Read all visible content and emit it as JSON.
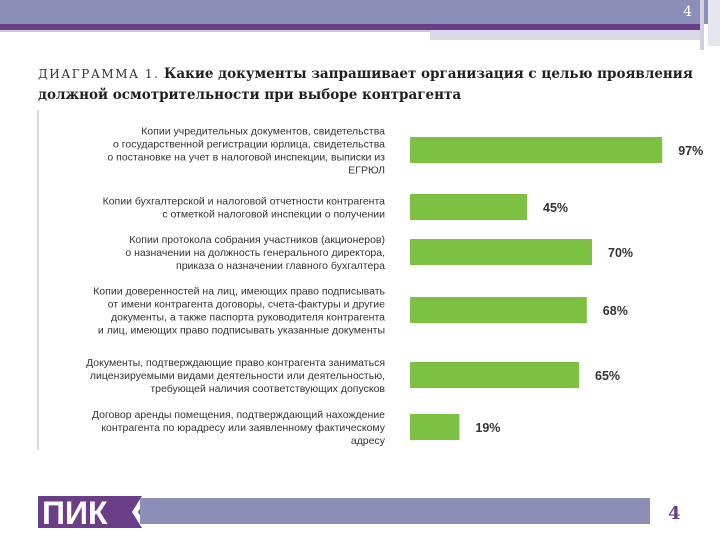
{
  "slide": {
    "page_number_top": "4",
    "page_number_bottom": "4",
    "title_prefix": "ДИАГРАММА 1.",
    "title_line1": "Какие документы запрашивает организация с целью проявления",
    "title_line2": "должной осмотрительности при выборе контрагента",
    "logo_text": "ПИК"
  },
  "colors": {
    "bar": "#7cc142",
    "header": "#8b8fb8",
    "accent": "#6a3f87"
  },
  "chart_data": {
    "type": "bar",
    "orientation": "horizontal",
    "categories": [
      [
        "Копии учредительных документов, свидетельства",
        "о государственной регистрации юрлица, свидетельства",
        "о постановке на учет в налоговой инспекции, выписки из",
        "ЕГРЮЛ"
      ],
      [
        "Копии бухгалтерской и налоговой отчетности контрагента",
        "с отметкой налоговой инспекции о получении"
      ],
      [
        "Копии протокола собрания участников (акционеров)",
        "о назначении на должность генерального директора,",
        "приказа о назначении главного бухгалтера"
      ],
      [
        "Копии доверенностей на лиц, имеющих право подписывать",
        "от имени контрагента договоры, счета-фактуры и другие",
        "документы, а также паспорта руководителя контрагента",
        "и лиц, имеющих право подписывать указанные документы"
      ],
      [
        "Документы, подтверждающие право контрагента заниматься",
        "лицензируемыми видами деятельности или деятельностью,",
        "требующей наличия соответствующих допусков"
      ],
      [
        "Договор аренды помещения, подтверждающий нахождение",
        "контрагента по юрадресу или заявленному фактическому",
        "адресу"
      ]
    ],
    "values": [
      97,
      45,
      70,
      68,
      65,
      19
    ],
    "value_labels": [
      "97%",
      "45%",
      "70%",
      "68%",
      "65%",
      "19%"
    ],
    "xlim": [
      0,
      100
    ]
  }
}
